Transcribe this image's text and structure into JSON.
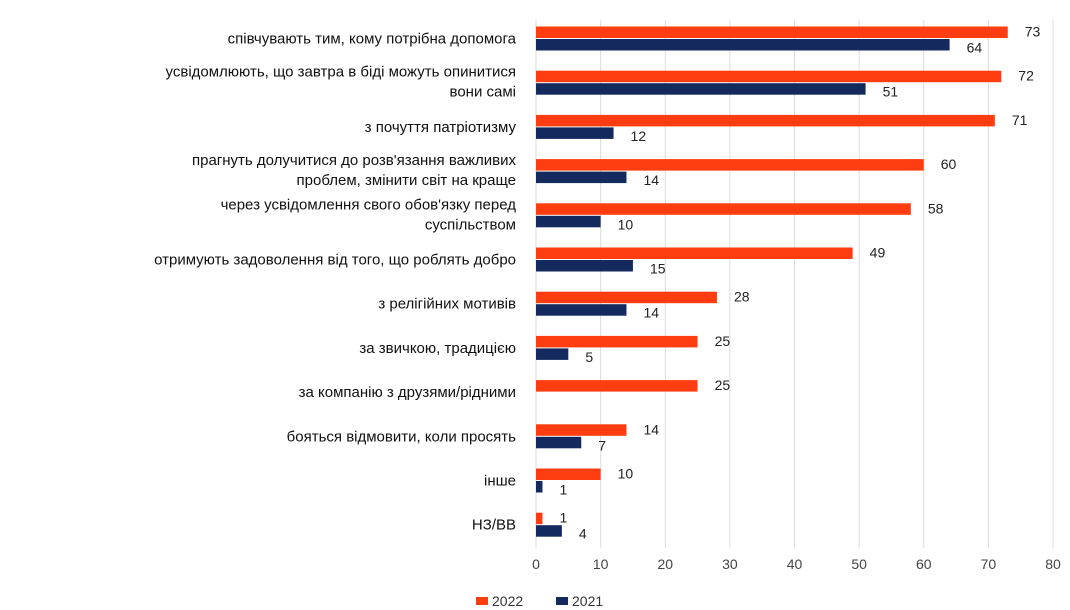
{
  "chart_data": {
    "type": "bar",
    "orientation": "horizontal",
    "categories": [
      [
        "співчувають тим, кому потрібна допомога"
      ],
      [
        "усвідомлюють, що завтра в біді можуть опинитися",
        "вони самі"
      ],
      [
        "з почуття патріотизму"
      ],
      [
        "прагнуть долучитися до розв'язання важливих",
        "проблем, змінити світ на краще"
      ],
      [
        "через усвідомлення свого обов'язку перед",
        "суспільством"
      ],
      [
        "отримують задоволення від того, що роблять добро"
      ],
      [
        "з релігійних мотивів"
      ],
      [
        "за звичкою, традицією"
      ],
      [
        "за компанію з друзями/рідними"
      ],
      [
        "бояться відмовити, коли просять"
      ],
      [
        "інше"
      ],
      [
        "НЗ/ВВ"
      ]
    ],
    "series": [
      {
        "name": "2022",
        "color": "#ff3d10",
        "values": [
          73,
          72,
          71,
          60,
          58,
          49,
          28,
          25,
          25,
          14,
          10,
          1
        ]
      },
      {
        "name": "2021",
        "color": "#14295e",
        "values": [
          64,
          51,
          12,
          14,
          10,
          15,
          14,
          5,
          null,
          7,
          1,
          4
        ]
      }
    ],
    "xlim": [
      0,
      80
    ],
    "xticks": [
      0,
      10,
      20,
      30,
      40,
      50,
      60,
      70,
      80
    ],
    "grid": true,
    "legend_position": "bottom"
  }
}
